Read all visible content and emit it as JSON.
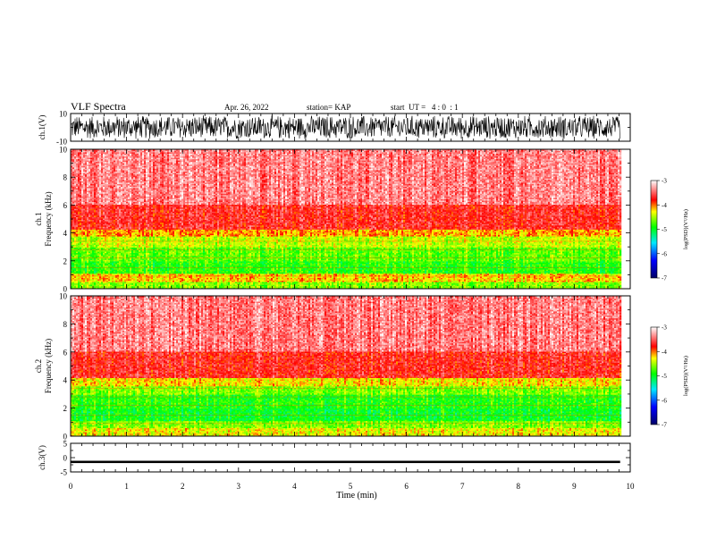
{
  "header": {
    "title": "VLF Spectra",
    "date": "Apr. 26, 2022",
    "station": "station= KAP",
    "start": "start  UT =   4 : 0  : 1"
  },
  "chart_data": [
    {
      "type": "line",
      "panel": "ch1-waveform",
      "ylabel": "ch.1(V)",
      "ylim": [
        -10,
        10
      ],
      "ytick_labels": [
        "10",
        "-10"
      ],
      "xlim": [
        0,
        10
      ],
      "x_extent": 9.82,
      "series": [
        {
          "color": "#000000",
          "amplitude": 9
        }
      ]
    },
    {
      "type": "heatmap",
      "panel": "ch1-spectrogram",
      "ylabel": "ch.1 Frequency (kHz)",
      "ylim": [
        0,
        10
      ],
      "ytick_labels": [
        "0",
        "2",
        "4",
        "6",
        "8",
        "10"
      ],
      "xlim": [
        0,
        10
      ],
      "x_extent": 9.82,
      "bands": [
        {
          "f": [
            0,
            0.5
          ],
          "level": -4.6
        },
        {
          "f": [
            0.5,
            1.0
          ],
          "level": -4.2
        },
        {
          "f": [
            1.0,
            2.0
          ],
          "level": -4.85
        },
        {
          "f": [
            2.0,
            3.0
          ],
          "level": -4.7
        },
        {
          "f": [
            3.0,
            3.8
          ],
          "level": -4.45
        },
        {
          "f": [
            3.8,
            4.3
          ],
          "level": -4.1
        },
        {
          "f": [
            4.3,
            6.0
          ],
          "level": -3.7
        },
        {
          "f": [
            6.0,
            10.0
          ],
          "level": -3.4
        }
      ],
      "colorbar": {
        "label": "log(PSD)(V²/Hz)",
        "range": [
          -7,
          -3
        ],
        "tick_labels": [
          "-3",
          "-4",
          "-5",
          "-6",
          "-7"
        ],
        "tick_values": [
          -3,
          -4,
          -5,
          -6,
          -7
        ]
      }
    },
    {
      "type": "heatmap",
      "panel": "ch2-spectrogram",
      "ylabel": "ch.2 Frequency (kHz)",
      "ylim": [
        0,
        10
      ],
      "ytick_labels": [
        "0",
        "2",
        "4",
        "6",
        "8",
        "10"
      ],
      "xlim": [
        0,
        10
      ],
      "x_extent": 9.82,
      "bands": [
        {
          "f": [
            0,
            0.6
          ],
          "level": -4.3
        },
        {
          "f": [
            0.6,
            1.0
          ],
          "level": -4.6
        },
        {
          "f": [
            1.0,
            2.0
          ],
          "level": -4.95
        },
        {
          "f": [
            2.0,
            3.0
          ],
          "level": -4.85
        },
        {
          "f": [
            3.0,
            3.6
          ],
          "level": -4.6
        },
        {
          "f": [
            3.6,
            4.2
          ],
          "level": -4.25
        },
        {
          "f": [
            4.2,
            6.0
          ],
          "level": -3.7
        },
        {
          "f": [
            6.0,
            10.0
          ],
          "level": -3.4
        }
      ],
      "colorbar": {
        "label": "log(PSD)(V²/Hz)",
        "range": [
          -7,
          -3
        ],
        "tick_labels": [
          "-3",
          "-4",
          "-5",
          "-6",
          "-7"
        ],
        "tick_values": [
          -3,
          -4,
          -5,
          -6,
          -7
        ]
      }
    },
    {
      "type": "line",
      "panel": "ch3-waveform",
      "ylabel": "ch.3(V)",
      "ylim": [
        -5,
        5
      ],
      "ytick_labels": [
        "5",
        "0",
        "-5"
      ],
      "xlim": [
        0,
        10
      ],
      "x_extent": 9.82,
      "series": [
        {
          "color": "#000000",
          "center": -1.5,
          "amplitude": 0.4
        }
      ]
    }
  ],
  "xaxis": {
    "xlabel": "Time (min)",
    "tick_labels": [
      "0",
      "1",
      "2",
      "3",
      "4",
      "5",
      "6",
      "7",
      "8",
      "9",
      "10"
    ]
  },
  "colormap": [
    "#000066",
    "#0000ff",
    "#00e8ff",
    "#00ff00",
    "#ffff00",
    "#ff0000",
    "#ffffff"
  ]
}
